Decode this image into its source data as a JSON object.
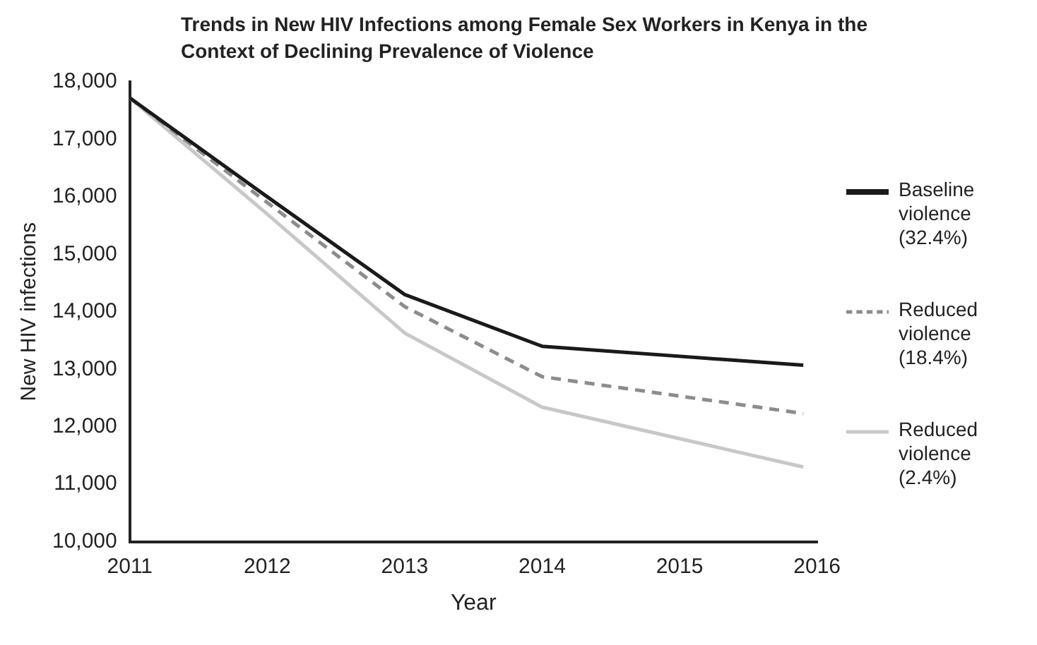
{
  "chart_data": {
    "type": "line",
    "title": "Trends in New HIV Infections among Female Sex Workers in Kenya in the Context of Declining Prevalence of Violence",
    "xlabel": "Year",
    "ylabel": "New HIV infections",
    "xlim": [
      2011,
      2016
    ],
    "xticks": [
      2011,
      2012,
      2013,
      2014,
      2015,
      2016
    ],
    "ylim": [
      10000,
      18000
    ],
    "yticks": [
      {
        "value": 10000,
        "label": "10,000"
      },
      {
        "value": 11000,
        "label": "11,000"
      },
      {
        "value": 12000,
        "label": "12,000"
      },
      {
        "value": 13000,
        "label": "13,000"
      },
      {
        "value": 14000,
        "label": "14,000"
      },
      {
        "value": 15000,
        "label": "15,000"
      },
      {
        "value": 16000,
        "label": "16,000"
      },
      {
        "value": 17000,
        "label": "17,000"
      },
      {
        "value": 18000,
        "label": "18,000"
      }
    ],
    "grid": false,
    "legend": "right",
    "marker": "none",
    "series": [
      {
        "name": "Baseline violence (32.4%)",
        "color": "#1a1a1a",
        "line_style": "solid",
        "x": [
          2011,
          2012,
          2013,
          2014,
          2015.9
        ],
        "values": [
          17720,
          16000,
          14300,
          13400,
          13070
        ]
      },
      {
        "name": "Reduced violence (18.4%)",
        "color": "#8c8c8c",
        "line_style": "dashed",
        "x": [
          2011,
          2012,
          2013,
          2014,
          2015.9
        ],
        "values": [
          17720,
          15900,
          14090,
          12870,
          12230
        ]
      },
      {
        "name": "Reduced violence (2.4%)",
        "color": "#c8c8c8",
        "line_style": "solid",
        "x": [
          2011,
          2012,
          2013,
          2014,
          2015.9
        ],
        "values": [
          17720,
          15700,
          13630,
          12340,
          11300
        ]
      }
    ]
  }
}
